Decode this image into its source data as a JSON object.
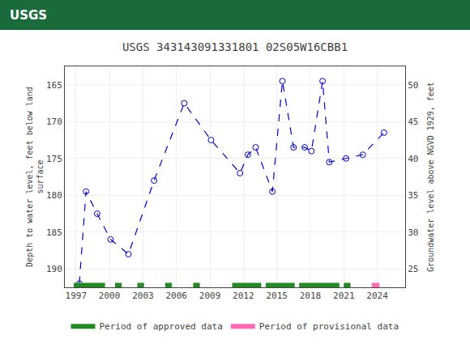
{
  "chart_data": {
    "type": "line",
    "title": "USGS 343143091331801 02S05W16CBB1",
    "annotations": [
      {
        "text": "USGS",
        "color": "#1a6b3c"
      }
    ],
    "y_label": "Depth to water level, feet below land\nsurface",
    "y2_label": "Groundwater level above NGVD 1929, feet",
    "x": [
      1997.3,
      1997.9,
      1998.9,
      2000.1,
      2001.7,
      2004.0,
      2006.7,
      2009.1,
      2011.7,
      2012.4,
      2013.1,
      2014.6,
      2015.5,
      2016.5,
      2017.5,
      2018.1,
      2019.1,
      2019.7,
      2021.2,
      2022.7,
      2024.6
    ],
    "values": [
      192.0,
      179.5,
      182.5,
      186.0,
      188.0,
      178.0,
      167.5,
      172.5,
      177.0,
      174.5,
      173.5,
      179.5,
      164.5,
      173.5,
      173.5,
      174.0,
      164.5,
      175.5,
      175.0,
      174.5,
      171.5
    ],
    "color": "#0000cc",
    "marker": "circle-open",
    "line_style": "dash",
    "xlim": [
      1996.0,
      2026.5
    ],
    "xticks": [
      1997,
      2000,
      2003,
      2006,
      2009,
      2012,
      2015,
      2018,
      2021,
      2024
    ],
    "ylim": [
      192.5,
      162.5
    ],
    "yticks": [
      165,
      170,
      175,
      180,
      185,
      190
    ],
    "y2lim": [
      22.5,
      52.5
    ],
    "y2ticks": [
      25,
      30,
      35,
      40,
      45,
      50
    ],
    "grid": true,
    "legend": "bottom",
    "periods": [
      {
        "name": "Period of approved data",
        "color": "#228B22",
        "ranges": [
          [
            1996.8,
            1999.6
          ],
          [
            2000.5,
            2001.1
          ],
          [
            2002.5,
            2003.1
          ],
          [
            2005.0,
            2005.6
          ],
          [
            2007.5,
            2008.1
          ],
          [
            2011.0,
            2013.6
          ],
          [
            2014.0,
            2016.6
          ],
          [
            2017.0,
            2020.6
          ],
          [
            2021.0,
            2021.6
          ]
        ]
      },
      {
        "name": "Period of provisional data",
        "color": "#ff69b4",
        "ranges": [
          [
            2023.5,
            2024.2
          ]
        ]
      }
    ],
    "band_y": 192.2,
    "band_height": 0.6
  }
}
